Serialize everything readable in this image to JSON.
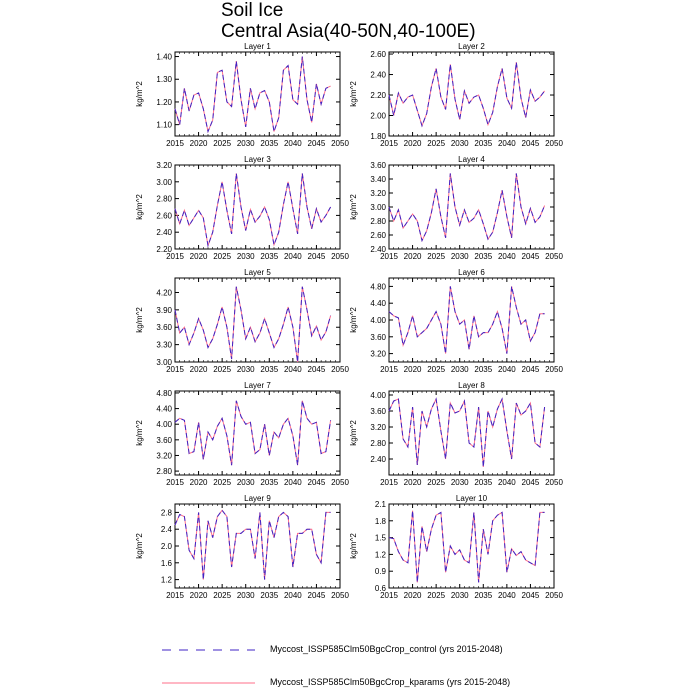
{
  "title": "Soil Ice",
  "subtitle": "Central Asia(40-50N,40-100E)",
  "colors": {
    "control": "#3f23c4",
    "kparams": "#ff6f8a",
    "axis": "#000000"
  },
  "legend": [
    {
      "label": "Myccost_ISSP585Clm50BgcCrop_control (yrs 2015-2048)",
      "style": "dashed",
      "color": "#3f23c4"
    },
    {
      "label": "Myccost_ISSP585Clm50BgcCrop_kparams (yrs 2015-2048)",
      "style": "solid",
      "color": "#ff6f8a"
    }
  ],
  "chart_data": [
    {
      "type": "line",
      "title": "Layer 1",
      "ylabel": "kg/m^2",
      "xlim": [
        2015,
        2050
      ],
      "ylim": [
        1.05,
        1.42
      ],
      "xticks": [
        2015,
        2020,
        2025,
        2030,
        2035,
        2040,
        2045,
        2050
      ],
      "yticks": [
        1.1,
        1.2,
        1.3,
        1.4
      ],
      "ytick_labels": [
        "1.10",
        "1.20",
        "1.30",
        "1.40"
      ],
      "years": [
        2015,
        2016,
        2017,
        2018,
        2019,
        2020,
        2021,
        2022,
        2023,
        2024,
        2025,
        2026,
        2027,
        2028,
        2029,
        2030,
        2031,
        2032,
        2033,
        2034,
        2035,
        2036,
        2037,
        2038,
        2039,
        2040,
        2041,
        2042,
        2043,
        2044,
        2045,
        2046,
        2047,
        2048
      ],
      "series": [
        {
          "name": "control",
          "values": [
            1.17,
            1.1,
            1.26,
            1.16,
            1.23,
            1.24,
            1.17,
            1.07,
            1.12,
            1.33,
            1.34,
            1.2,
            1.18,
            1.38,
            1.21,
            1.09,
            1.26,
            1.17,
            1.24,
            1.25,
            1.2,
            1.07,
            1.13,
            1.34,
            1.36,
            1.21,
            1.19,
            1.4,
            1.21,
            1.11,
            1.28,
            1.19,
            1.26,
            1.27
          ]
        }
      ]
    },
    {
      "type": "line",
      "title": "Layer 2",
      "ylabel": "kg/m^2",
      "xlim": [
        2015,
        2050
      ],
      "ylim": [
        1.8,
        2.62
      ],
      "xticks": [
        2015,
        2020,
        2025,
        2030,
        2035,
        2040,
        2045,
        2050
      ],
      "yticks": [
        1.8,
        2.0,
        2.2,
        2.4,
        2.6
      ],
      "ytick_labels": [
        "1.80",
        "2.00",
        "2.20",
        "2.40",
        "2.60"
      ],
      "years": [
        2015,
        2016,
        2017,
        2018,
        2019,
        2020,
        2021,
        2022,
        2023,
        2024,
        2025,
        2026,
        2027,
        2028,
        2029,
        2030,
        2031,
        2032,
        2033,
        2034,
        2035,
        2036,
        2037,
        2038,
        2039,
        2040,
        2041,
        2042,
        2043,
        2044,
        2045,
        2046,
        2047,
        2048
      ],
      "series": [
        {
          "name": "control",
          "values": [
            2.2,
            2.0,
            2.22,
            2.12,
            2.18,
            2.2,
            2.05,
            1.9,
            2.02,
            2.28,
            2.46,
            2.18,
            2.06,
            2.5,
            2.16,
            1.96,
            2.24,
            2.12,
            2.18,
            2.2,
            2.07,
            1.91,
            2.03,
            2.28,
            2.46,
            2.17,
            2.07,
            2.52,
            2.17,
            1.98,
            2.25,
            2.14,
            2.18,
            2.24
          ]
        }
      ]
    },
    {
      "type": "line",
      "title": "Layer 3",
      "ylabel": "kg/m^2",
      "xlim": [
        2015,
        2050
      ],
      "ylim": [
        2.2,
        3.2
      ],
      "xticks": [
        2015,
        2020,
        2025,
        2030,
        2035,
        2040,
        2045,
        2050
      ],
      "yticks": [
        2.2,
        2.4,
        2.6,
        2.8,
        3.0,
        3.2
      ],
      "ytick_labels": [
        "2.20",
        "2.40",
        "2.60",
        "2.80",
        "3.00",
        "3.20"
      ],
      "years": [
        2015,
        2016,
        2017,
        2018,
        2019,
        2020,
        2021,
        2022,
        2023,
        2024,
        2025,
        2026,
        2027,
        2028,
        2029,
        2030,
        2031,
        2032,
        2033,
        2034,
        2035,
        2036,
        2037,
        2038,
        2039,
        2040,
        2041,
        2042,
        2043,
        2044,
        2045,
        2046,
        2047,
        2048
      ],
      "series": [
        {
          "name": "control",
          "values": [
            2.68,
            2.5,
            2.66,
            2.48,
            2.57,
            2.66,
            2.57,
            2.24,
            2.4,
            2.72,
            3.0,
            2.66,
            2.38,
            3.1,
            2.7,
            2.42,
            2.67,
            2.52,
            2.59,
            2.7,
            2.55,
            2.25,
            2.4,
            2.73,
            3.0,
            2.68,
            2.38,
            3.1,
            2.7,
            2.44,
            2.68,
            2.52,
            2.6,
            2.7
          ]
        }
      ]
    },
    {
      "type": "line",
      "title": "Layer 4",
      "ylabel": "kg/m^2",
      "xlim": [
        2015,
        2050
      ],
      "ylim": [
        2.4,
        3.6
      ],
      "xticks": [
        2015,
        2020,
        2025,
        2030,
        2035,
        2040,
        2045,
        2050
      ],
      "yticks": [
        2.4,
        2.6,
        2.8,
        3.0,
        3.2,
        3.4,
        3.6
      ],
      "ytick_labels": [
        "2.40",
        "2.60",
        "2.80",
        "3.00",
        "3.20",
        "3.40",
        "3.60"
      ],
      "years": [
        2015,
        2016,
        2017,
        2018,
        2019,
        2020,
        2021,
        2022,
        2023,
        2024,
        2025,
        2026,
        2027,
        2028,
        2029,
        2030,
        2031,
        2032,
        2033,
        2034,
        2035,
        2036,
        2037,
        2038,
        2039,
        2040,
        2041,
        2042,
        2043,
        2044,
        2045,
        2046,
        2047,
        2048
      ],
      "series": [
        {
          "name": "control",
          "values": [
            3.0,
            2.8,
            2.96,
            2.7,
            2.8,
            2.9,
            2.8,
            2.52,
            2.66,
            2.92,
            3.26,
            2.86,
            2.56,
            3.48,
            3.0,
            2.74,
            2.96,
            2.78,
            2.84,
            2.96,
            2.76,
            2.54,
            2.64,
            2.92,
            3.24,
            2.86,
            2.56,
            3.48,
            3.0,
            2.76,
            2.98,
            2.78,
            2.86,
            3.02
          ]
        }
      ]
    },
    {
      "type": "line",
      "title": "Layer 5",
      "ylabel": "kg/m^2",
      "xlim": [
        2015,
        2050
      ],
      "ylim": [
        3.0,
        4.45
      ],
      "xticks": [
        2015,
        2020,
        2025,
        2030,
        2035,
        2040,
        2045,
        2050
      ],
      "yticks": [
        3.0,
        3.3,
        3.6,
        3.9,
        4.2
      ],
      "ytick_labels": [
        "3.00",
        "3.30",
        "3.60",
        "3.90",
        "4.20"
      ],
      "years": [
        2015,
        2016,
        2017,
        2018,
        2019,
        2020,
        2021,
        2022,
        2023,
        2024,
        2025,
        2026,
        2027,
        2028,
        2029,
        2030,
        2031,
        2032,
        2033,
        2034,
        2035,
        2036,
        2037,
        2038,
        2039,
        2040,
        2041,
        2042,
        2043,
        2044,
        2045,
        2046,
        2047,
        2048
      ],
      "series": [
        {
          "name": "control",
          "values": [
            3.9,
            3.5,
            3.6,
            3.3,
            3.5,
            3.75,
            3.55,
            3.25,
            3.4,
            3.65,
            3.95,
            3.6,
            3.05,
            4.3,
            3.9,
            3.4,
            3.6,
            3.35,
            3.5,
            3.75,
            3.5,
            3.25,
            3.4,
            3.65,
            3.95,
            3.6,
            3.0,
            4.3,
            3.9,
            3.45,
            3.62,
            3.38,
            3.52,
            3.8
          ]
        }
      ]
    },
    {
      "type": "line",
      "title": "Layer 6",
      "ylabel": "kg/m^2",
      "xlim": [
        2015,
        2050
      ],
      "ylim": [
        3.0,
        5.0
      ],
      "xticks": [
        2015,
        2020,
        2025,
        2030,
        2035,
        2040,
        2045,
        2050
      ],
      "yticks": [
        3.2,
        3.6,
        4.0,
        4.4,
        4.8
      ],
      "ytick_labels": [
        "3.20",
        "3.60",
        "4.00",
        "4.40",
        "4.80"
      ],
      "years": [
        2015,
        2016,
        2017,
        2018,
        2019,
        2020,
        2021,
        2022,
        2023,
        2024,
        2025,
        2026,
        2027,
        2028,
        2029,
        2030,
        2031,
        2032,
        2033,
        2034,
        2035,
        2036,
        2037,
        2038,
        2039,
        2040,
        2041,
        2042,
        2043,
        2044,
        2045,
        2046,
        2047,
        2048
      ],
      "series": [
        {
          "name": "control",
          "values": [
            4.2,
            4.1,
            4.05,
            3.4,
            3.7,
            4.1,
            3.6,
            3.7,
            3.8,
            4.0,
            4.2,
            3.9,
            3.2,
            4.8,
            4.2,
            3.9,
            4.0,
            3.3,
            4.1,
            3.6,
            3.7,
            3.7,
            3.9,
            4.2,
            3.8,
            3.2,
            4.8,
            4.3,
            3.9,
            4.0,
            3.5,
            3.7,
            4.15,
            4.15
          ]
        }
      ]
    },
    {
      "type": "line",
      "title": "Layer 7",
      "ylabel": "kg/m^2",
      "xlim": [
        2015,
        2050
      ],
      "ylim": [
        2.7,
        4.85
      ],
      "xticks": [
        2015,
        2020,
        2025,
        2030,
        2035,
        2040,
        2045,
        2050
      ],
      "yticks": [
        2.8,
        3.2,
        3.6,
        4.0,
        4.4,
        4.8
      ],
      "ytick_labels": [
        "2.80",
        "3.20",
        "3.60",
        "4.00",
        "4.40",
        "4.80"
      ],
      "years": [
        2015,
        2016,
        2017,
        2018,
        2019,
        2020,
        2021,
        2022,
        2023,
        2024,
        2025,
        2026,
        2027,
        2028,
        2029,
        2030,
        2031,
        2032,
        2033,
        2034,
        2035,
        2036,
        2037,
        2038,
        2039,
        2040,
        2041,
        2042,
        2043,
        2044,
        2045,
        2046,
        2047,
        2048
      ],
      "series": [
        {
          "name": "control",
          "values": [
            4.05,
            4.15,
            4.1,
            3.25,
            3.3,
            4.05,
            3.1,
            3.8,
            3.6,
            3.95,
            4.15,
            3.7,
            2.95,
            4.6,
            4.2,
            4.0,
            4.05,
            3.25,
            3.35,
            4.0,
            3.2,
            3.8,
            3.65,
            4.0,
            4.15,
            3.7,
            2.95,
            4.6,
            4.15,
            4.0,
            4.05,
            3.25,
            3.3,
            4.1
          ]
        }
      ]
    },
    {
      "type": "line",
      "title": "Layer 8",
      "ylabel": "kg/m^2",
      "xlim": [
        2015,
        2050
      ],
      "ylim": [
        2.0,
        4.1
      ],
      "xticks": [
        2015,
        2020,
        2025,
        2030,
        2035,
        2040,
        2045,
        2050
      ],
      "yticks": [
        2.4,
        2.8,
        3.2,
        3.6,
        4.0
      ],
      "ytick_labels": [
        "2.40",
        "2.80",
        "3.20",
        "3.60",
        "4.00"
      ],
      "years": [
        2015,
        2016,
        2017,
        2018,
        2019,
        2020,
        2021,
        2022,
        2023,
        2024,
        2025,
        2026,
        2027,
        2028,
        2029,
        2030,
        2031,
        2032,
        2033,
        2034,
        2035,
        2036,
        2037,
        2038,
        2039,
        2040,
        2041,
        2042,
        2043,
        2044,
        2045,
        2046,
        2047,
        2048
      ],
      "series": [
        {
          "name": "control",
          "values": [
            3.6,
            3.85,
            3.9,
            2.9,
            2.7,
            3.7,
            2.25,
            3.6,
            3.2,
            3.65,
            3.9,
            3.1,
            2.4,
            3.8,
            3.55,
            3.6,
            3.85,
            2.8,
            2.7,
            3.7,
            2.2,
            3.6,
            3.2,
            3.65,
            3.9,
            3.1,
            2.4,
            3.8,
            3.5,
            3.6,
            3.8,
            2.8,
            2.7,
            3.7
          ]
        }
      ]
    },
    {
      "type": "line",
      "title": "Layer 9",
      "ylabel": "kg/m^2",
      "xlim": [
        2015,
        2050
      ],
      "ylim": [
        1.0,
        3.0
      ],
      "xticks": [
        2015,
        2020,
        2025,
        2030,
        2035,
        2040,
        2045,
        2050
      ],
      "yticks": [
        1.2,
        1.6,
        2.0,
        2.4,
        2.8
      ],
      "ytick_labels": [
        "1.2",
        "1.6",
        "2.0",
        "2.4",
        "2.8"
      ],
      "years": [
        2015,
        2016,
        2017,
        2018,
        2019,
        2020,
        2021,
        2022,
        2023,
        2024,
        2025,
        2026,
        2027,
        2028,
        2029,
        2030,
        2031,
        2032,
        2033,
        2034,
        2035,
        2036,
        2037,
        2038,
        2039,
        2040,
        2041,
        2042,
        2043,
        2044,
        2045,
        2046,
        2047,
        2048
      ],
      "series": [
        {
          "name": "control",
          "values": [
            2.5,
            2.75,
            2.7,
            1.9,
            1.7,
            2.8,
            1.2,
            2.6,
            2.2,
            2.7,
            2.85,
            2.7,
            1.5,
            2.3,
            2.3,
            2.4,
            2.4,
            1.7,
            2.8,
            1.2,
            2.6,
            2.2,
            2.7,
            2.8,
            2.7,
            1.5,
            2.3,
            2.3,
            2.4,
            2.4,
            1.8,
            1.6,
            2.8,
            2.8
          ]
        }
      ]
    },
    {
      "type": "line",
      "title": "Layer 10",
      "ylabel": "kg/m^2",
      "xlim": [
        2015,
        2050
      ],
      "ylim": [
        0.6,
        2.1
      ],
      "xticks": [
        2015,
        2020,
        2025,
        2030,
        2035,
        2040,
        2045,
        2050
      ],
      "yticks": [
        0.6,
        0.9,
        1.2,
        1.5,
        1.8,
        2.1
      ],
      "ytick_labels": [
        "0.6",
        "0.9",
        "1.2",
        "1.5",
        "1.8",
        "2.1"
      ],
      "years": [
        2015,
        2016,
        2017,
        2018,
        2019,
        2020,
        2021,
        2022,
        2023,
        2024,
        2025,
        2026,
        2027,
        2028,
        2029,
        2030,
        2031,
        2032,
        2033,
        2034,
        2035,
        2036,
        2037,
        2038,
        2039,
        2040,
        2041,
        2042,
        2043,
        2044,
        2045,
        2046,
        2047,
        2048
      ],
      "series": [
        {
          "name": "control",
          "values": [
            1.5,
            1.48,
            1.25,
            1.1,
            1.05,
            1.98,
            0.7,
            1.7,
            1.25,
            1.65,
            1.9,
            1.95,
            0.88,
            1.35,
            1.2,
            1.28,
            1.1,
            1.05,
            1.95,
            0.7,
            1.65,
            1.2,
            1.8,
            1.9,
            1.95,
            0.88,
            1.3,
            1.18,
            1.25,
            1.1,
            1.05,
            1.0,
            1.95,
            1.95
          ]
        }
      ]
    }
  ]
}
